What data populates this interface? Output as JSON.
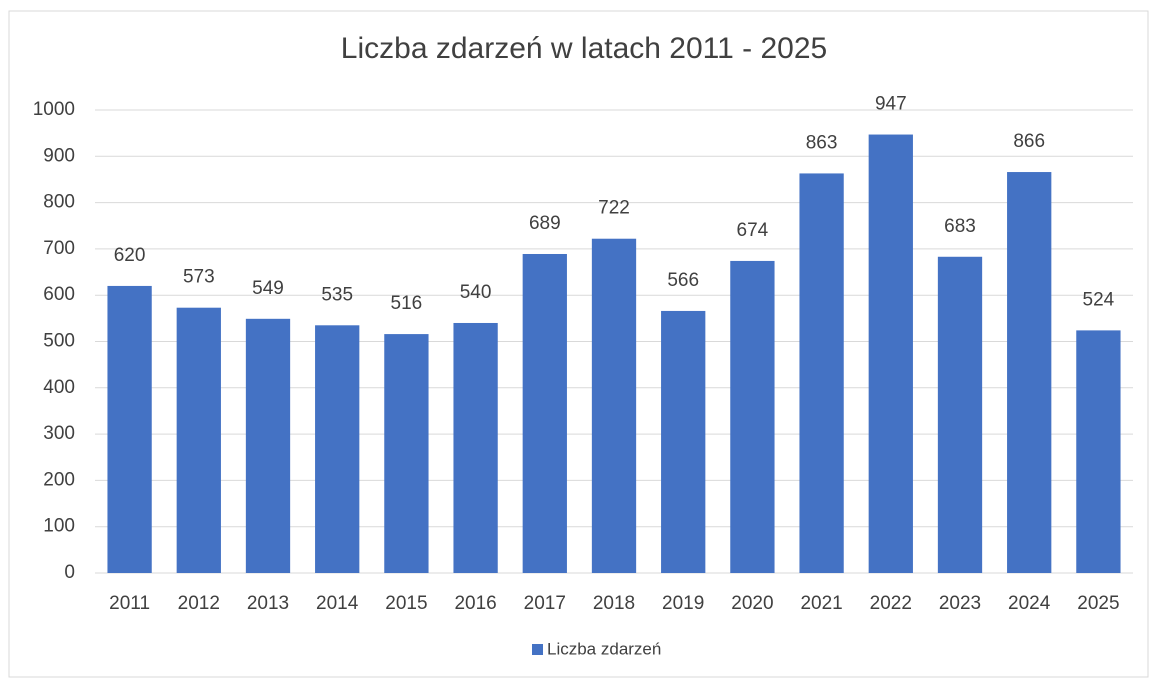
{
  "chart_data": {
    "type": "bar",
    "title": "Liczba zdarzeń w latach 2011 - 2025",
    "categories": [
      "2011",
      "2012",
      "2013",
      "2014",
      "2015",
      "2016",
      "2017",
      "2018",
      "2019",
      "2020",
      "2021",
      "2022",
      "2023",
      "2024",
      "2025"
    ],
    "series": [
      {
        "name": "Liczba zdarzeń",
        "color": "#4472c4",
        "values": [
          620,
          573,
          549,
          535,
          516,
          540,
          689,
          722,
          566,
          674,
          863,
          947,
          683,
          866,
          524
        ]
      }
    ],
    "ylim": [
      0,
      1000
    ],
    "yticks": [
      0,
      100,
      200,
      300,
      400,
      500,
      600,
      700,
      800,
      900,
      1000
    ],
    "grid": true,
    "legend": "bottom"
  }
}
